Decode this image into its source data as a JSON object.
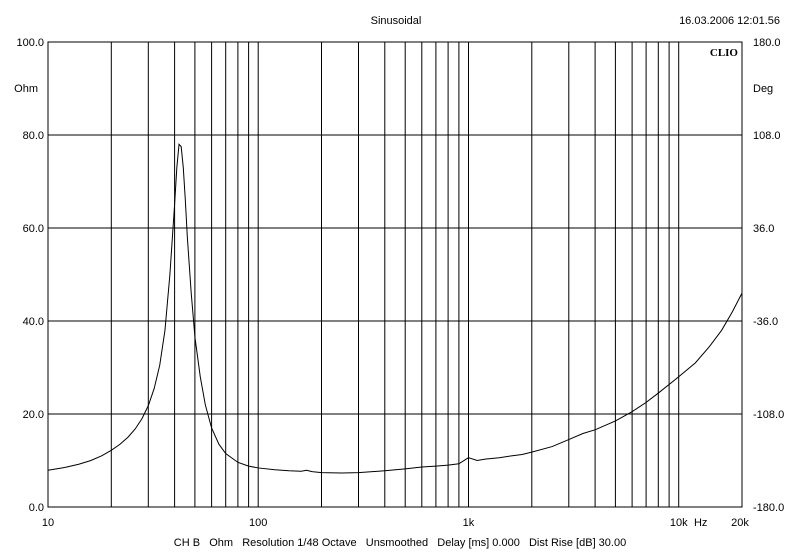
{
  "header": {
    "mode": "Sinusoidal",
    "timestamp": "16.03.2006 12:01.56",
    "logo": "CLIO"
  },
  "footer": {
    "settings": "CH B   Ohm   Resolution 1/48 Octave   Unsmoothed   Delay [ms] 0.000   Dist Rise [dB] 30.00"
  },
  "chart_data": {
    "type": "line",
    "title": "Sinusoidal",
    "x_scale": "log",
    "xlim": [
      10,
      20000
    ],
    "x_ticks": [
      {
        "value": 10,
        "label": "10"
      },
      {
        "value": 100,
        "label": "100"
      },
      {
        "value": 1000,
        "label": "1k"
      },
      {
        "value": 10000,
        "label": "10k"
      },
      {
        "value": 20000,
        "label": "20k"
      }
    ],
    "x_unit_label": "Hz",
    "y_left": {
      "unit": "Ohm",
      "ylim": [
        0,
        100
      ],
      "ticks": [
        {
          "value": 0,
          "label": "0.0"
        },
        {
          "value": 20,
          "label": "20.0"
        },
        {
          "value": 40,
          "label": "40.0"
        },
        {
          "value": 60,
          "label": "60.0"
        },
        {
          "value": 80,
          "label": "80.0"
        },
        {
          "value": 100,
          "label": "100.0"
        }
      ]
    },
    "y_right": {
      "unit": "Deg",
      "ylim": [
        -180,
        180
      ],
      "ticks": [
        {
          "value": -180,
          "label": "-180.0"
        },
        {
          "value": -108,
          "label": "-108.0"
        },
        {
          "value": -36,
          "label": "-36.0"
        },
        {
          "value": 36,
          "label": "36.0"
        },
        {
          "value": 108,
          "label": "108.0"
        },
        {
          "value": 180,
          "label": "180.0"
        }
      ]
    },
    "grid": true,
    "series": [
      {
        "axis": "left",
        "points": [
          [
            10,
            7.9
          ],
          [
            12,
            8.5
          ],
          [
            14,
            9.2
          ],
          [
            16,
            10.0
          ],
          [
            18,
            11.0
          ],
          [
            20,
            12.2
          ],
          [
            22,
            13.5
          ],
          [
            24,
            15.0
          ],
          [
            26,
            16.8
          ],
          [
            28,
            19.0
          ],
          [
            30,
            21.8
          ],
          [
            32,
            25.5
          ],
          [
            34,
            30.5
          ],
          [
            36,
            38.0
          ],
          [
            38,
            50.0
          ],
          [
            40,
            65.0
          ],
          [
            41,
            73.0
          ],
          [
            42,
            78.0
          ],
          [
            43,
            77.5
          ],
          [
            44,
            73.0
          ],
          [
            45,
            66.0
          ],
          [
            46,
            58.0
          ],
          [
            48,
            46.0
          ],
          [
            50,
            36.5
          ],
          [
            53,
            28.0
          ],
          [
            56,
            22.0
          ],
          [
            60,
            17.0
          ],
          [
            65,
            13.5
          ],
          [
            70,
            11.5
          ],
          [
            80,
            9.6
          ],
          [
            90,
            8.8
          ],
          [
            100,
            8.4
          ],
          [
            120,
            8.0
          ],
          [
            140,
            7.8
          ],
          [
            160,
            7.7
          ],
          [
            170,
            7.9
          ],
          [
            180,
            7.6
          ],
          [
            200,
            7.4
          ],
          [
            250,
            7.3
          ],
          [
            300,
            7.4
          ],
          [
            350,
            7.6
          ],
          [
            400,
            7.8
          ],
          [
            500,
            8.2
          ],
          [
            600,
            8.6
          ],
          [
            700,
            8.8
          ],
          [
            800,
            9.0
          ],
          [
            900,
            9.3
          ],
          [
            1000,
            10.6
          ],
          [
            1100,
            10.0
          ],
          [
            1200,
            10.3
          ],
          [
            1400,
            10.6
          ],
          [
            1600,
            11.0
          ],
          [
            1800,
            11.3
          ],
          [
            2000,
            11.8
          ],
          [
            2500,
            13.0
          ],
          [
            3000,
            14.5
          ],
          [
            3500,
            15.8
          ],
          [
            4000,
            16.6
          ],
          [
            5000,
            18.5
          ],
          [
            6000,
            20.5
          ],
          [
            7000,
            22.5
          ],
          [
            8000,
            24.5
          ],
          [
            10000,
            28.0
          ],
          [
            12000,
            31.0
          ],
          [
            14000,
            34.5
          ],
          [
            16000,
            38.0
          ],
          [
            18000,
            42.0
          ],
          [
            20000,
            46.0
          ]
        ]
      }
    ]
  }
}
